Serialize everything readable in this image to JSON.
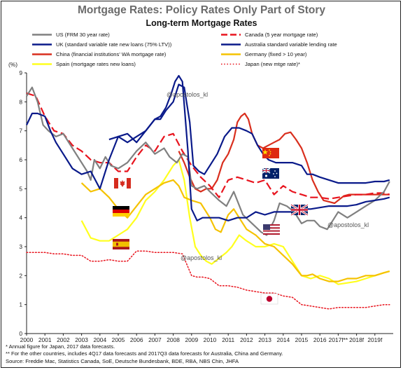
{
  "title": "Mortgage Rates: Policy Rates Only Part of Story",
  "subtitle": "Long-term Mortgage Rates",
  "watermarks": [
    "@apostolos_kl",
    "@apostolos_kl",
    "@apostolos_kl"
  ],
  "flags": [
    {
      "country": "China",
      "icon": "china-flag-icon"
    },
    {
      "country": "Australia",
      "icon": "australia-flag-icon"
    },
    {
      "country": "Canada",
      "icon": "canada-flag-icon"
    },
    {
      "country": "UK",
      "icon": "uk-flag-icon"
    },
    {
      "country": "Germany",
      "icon": "germany-flag-icon"
    },
    {
      "country": "US",
      "icon": "us-flag-icon"
    },
    {
      "country": "Spain",
      "icon": "spain-flag-icon"
    },
    {
      "country": "Japan",
      "icon": "japan-flag-icon"
    }
  ],
  "footnotes": [
    " * Annual figure for Japan,  2017 data forecasts.",
    " ** For the other countries, includes 4Q17 data forecasts and 2017Q3 data forecasts for Australia, China and Germany.",
    " Source: Freddie Mac, Statistics Canada, SoE, Deutsche Bundesbank, BDE, RBA, NBS Chin, JHFA"
  ],
  "chart_data": {
    "type": "line",
    "title": "Long-term Mortgage Rates",
    "ylabel": "(%)",
    "ylim": [
      0,
      9
    ],
    "yticks": [
      "0",
      "1",
      "2",
      "3",
      "4",
      "5",
      "6",
      "7",
      "8",
      "9"
    ],
    "xlim": [
      2000,
      2020
    ],
    "xticks": [
      "2000",
      "2001",
      "2002",
      "2003",
      "2004",
      "2005",
      "2006",
      "2007",
      "2008",
      "2009",
      "2010",
      "2011",
      "2012",
      "2013",
      "2014",
      "2015",
      "2016",
      "2017f**",
      "2018f",
      "2019f"
    ],
    "grid": false,
    "legend_position": "top",
    "series": [
      {
        "name": "US (FRM 30 year rate)",
        "color": "#808080",
        "dash": "solid",
        "x": [
          2000,
          2000.3,
          2000.6,
          2000.9,
          2001.2,
          2001.6,
          2002.0,
          2002.5,
          2002.9,
          2003.3,
          2003.5,
          2003.7,
          2004.0,
          2004.3,
          2004.6,
          2005.0,
          2005.5,
          2006.0,
          2006.5,
          2007.0,
          2007.5,
          2007.8,
          2008.2,
          2008.5,
          2008.8,
          2009.0,
          2009.3,
          2009.7,
          2010.0,
          2010.5,
          2010.9,
          2011.3,
          2011.8,
          2012.3,
          2012.8,
          2013.1,
          2013.5,
          2013.8,
          2014.2,
          2014.6,
          2015.0,
          2015.3,
          2015.7,
          2016.0,
          2016.4,
          2016.8,
          2017.0,
          2017.5,
          2018.0,
          2018.5,
          2019.0,
          2019.5,
          2019.8
        ],
        "y": [
          8.2,
          8.5,
          8.0,
          7.2,
          7.0,
          6.8,
          6.9,
          6.4,
          6.0,
          5.6,
          5.3,
          6.0,
          5.7,
          6.1,
          5.8,
          5.7,
          5.9,
          6.3,
          6.6,
          6.2,
          6.4,
          6.1,
          5.9,
          6.2,
          6.1,
          5.1,
          5.0,
          5.1,
          4.9,
          4.6,
          4.4,
          4.9,
          4.1,
          3.8,
          3.5,
          3.4,
          3.9,
          4.5,
          4.4,
          4.2,
          3.8,
          3.9,
          3.9,
          3.7,
          3.6,
          4.0,
          4.2,
          4.0,
          4.2,
          4.4,
          4.6,
          4.9,
          5.25
        ]
      },
      {
        "name": "Canada (5 year mortgage rate)",
        "color": "#e8141e",
        "dash": "long",
        "x": [
          2000,
          2000.5,
          2001.0,
          2001.5,
          2002.0,
          2002.5,
          2003.0,
          2003.5,
          2004.0,
          2004.5,
          2005.0,
          2005.5,
          2006.0,
          2006.5,
          2007.0,
          2007.5,
          2008.0,
          2008.5,
          2009.0,
          2009.5,
          2010.0,
          2010.5,
          2011.0,
          2011.5,
          2012.0,
          2012.5,
          2013.0,
          2013.5,
          2014.0,
          2014.5,
          2015.0,
          2015.5,
          2016.0,
          2016.5,
          2017.0,
          2017.5,
          2018.0,
          2018.5,
          2019.0,
          2019.5,
          2019.8
        ],
        "y": [
          8.3,
          8.2,
          7.5,
          7.0,
          6.9,
          6.5,
          6.3,
          6.0,
          5.9,
          5.9,
          5.6,
          5.6,
          6.1,
          6.5,
          6.3,
          6.8,
          6.9,
          6.3,
          5.8,
          5.4,
          5.1,
          4.7,
          5.3,
          5.4,
          5.3,
          5.2,
          5.3,
          4.8,
          5.1,
          4.9,
          4.8,
          4.7,
          4.7,
          4.65,
          4.7,
          4.75,
          4.8,
          4.8,
          4.85,
          4.85,
          4.8
        ]
      },
      {
        "name": "UK (standard variable rate new loans (75% LTV))",
        "color": "#0a1a8a",
        "dash": "solid",
        "x": [
          2000,
          2000.3,
          2000.6,
          2001.0,
          2001.3,
          2001.6,
          2002.0,
          2002.5,
          2003.0,
          2003.5,
          2004.0,
          2004.5,
          2005.0,
          2005.5,
          2006.0,
          2006.5,
          2007.0,
          2007.3,
          2007.6,
          2007.9,
          2008.1,
          2008.3,
          2008.5,
          2008.8,
          2009.0,
          2009.3,
          2009.6,
          2010.0,
          2010.5,
          2011.0,
          2011.5,
          2012.0,
          2012.5,
          2013.0,
          2013.5,
          2014.0,
          2014.5,
          2015.0,
          2015.5,
          2016.0,
          2016.5,
          2017.0,
          2017.5,
          2018.0,
          2018.5,
          2019.0,
          2019.5,
          2019.8
        ],
        "y": [
          7.2,
          7.6,
          7.6,
          7.5,
          7.0,
          6.6,
          6.2,
          5.7,
          5.5,
          5.6,
          5.0,
          6.0,
          6.8,
          6.6,
          6.8,
          7.0,
          7.4,
          7.5,
          7.8,
          8.3,
          8.7,
          8.9,
          8.7,
          6.3,
          4.3,
          3.9,
          4.0,
          4.0,
          4.0,
          3.9,
          4.0,
          4.0,
          4.2,
          4.1,
          4.2,
          4.2,
          4.2,
          4.3,
          4.3,
          4.35,
          4.4,
          4.4,
          4.4,
          4.45,
          4.55,
          4.6,
          4.65,
          4.7
        ]
      },
      {
        "name": "Australia standard variable lending rate",
        "color": "#0a1a8a",
        "dash": "solid",
        "x": [
          2004.5,
          2005.0,
          2005.5,
          2006.0,
          2006.5,
          2007.0,
          2007.3,
          2007.6,
          2008.0,
          2008.3,
          2008.6,
          2008.9,
          2009.1,
          2009.4,
          2009.7,
          2010.0,
          2010.4,
          2010.8,
          2011.2,
          2011.6,
          2012.0,
          2012.3,
          2012.6,
          2012.9,
          2013.2,
          2013.6,
          2014.0,
          2014.5,
          2015.0,
          2015.3,
          2015.6,
          2016.0,
          2016.5,
          2017.0,
          2017.5,
          2018.0,
          2018.5,
          2019.0,
          2019.5,
          2019.8
        ],
        "y": [
          6.7,
          6.8,
          6.9,
          6.6,
          7.0,
          7.4,
          7.4,
          7.7,
          8.0,
          8.6,
          8.5,
          7.3,
          5.8,
          5.6,
          5.5,
          5.8,
          6.2,
          6.8,
          7.1,
          7.1,
          7.0,
          6.9,
          6.5,
          6.2,
          6.0,
          5.9,
          5.9,
          5.9,
          5.8,
          5.5,
          5.5,
          5.4,
          5.3,
          5.2,
          5.2,
          5.2,
          5.2,
          5.25,
          5.25,
          5.3
        ]
      },
      {
        "name": "China (financial institutions' WA mortgage rate)",
        "color": "#d92f1e",
        "dash": "solid",
        "x": [
          2008.3,
          2008.6,
          2008.9,
          2009.2,
          2009.5,
          2009.8,
          2010.1,
          2010.4,
          2010.7,
          2011.0,
          2011.3,
          2011.5,
          2011.7,
          2011.9,
          2012.1,
          2012.3,
          2012.6,
          2012.9,
          2013.2,
          2013.5,
          2013.8,
          2014.1,
          2014.4,
          2014.7,
          2015.0,
          2015.3,
          2015.6,
          2015.9,
          2016.2,
          2016.5,
          2016.8,
          2017.0,
          2017.3,
          2017.6,
          2018.0,
          2018.5,
          2019.0,
          2019.5,
          2019.8
        ],
        "y": [
          6.3,
          5.9,
          5.4,
          5.0,
          4.9,
          5.0,
          5.0,
          5.3,
          5.9,
          6.2,
          6.7,
          7.3,
          7.5,
          7.6,
          7.4,
          6.9,
          6.5,
          6.4,
          6.5,
          6.6,
          6.7,
          6.9,
          6.95,
          6.7,
          6.4,
          5.9,
          5.3,
          4.9,
          4.6,
          4.55,
          4.5,
          4.6,
          4.75,
          4.8,
          4.8,
          4.8,
          4.8,
          4.8,
          4.8
        ]
      },
      {
        "name": "Germany (fixed > 10 year)",
        "color": "#f5c200",
        "dash": "solid",
        "x": [
          2003.0,
          2003.5,
          2004.0,
          2004.5,
          2005.0,
          2005.5,
          2006.0,
          2006.5,
          2007.0,
          2007.5,
          2008.0,
          2008.3,
          2008.6,
          2009.0,
          2009.5,
          2010.0,
          2010.3,
          2010.6,
          2011.0,
          2011.3,
          2011.7,
          2012.0,
          2012.5,
          2013.0,
          2013.5,
          2014.0,
          2014.5,
          2015.0,
          2015.3,
          2015.6,
          2016.0,
          2016.5,
          2017.0,
          2017.5,
          2018.0,
          2018.5,
          2019.0,
          2019.5,
          2019.8
        ],
        "y": [
          5.2,
          4.9,
          5.0,
          4.7,
          4.3,
          4.0,
          4.4,
          4.8,
          5.0,
          5.2,
          5.3,
          5.1,
          4.7,
          4.6,
          4.5,
          4.0,
          3.6,
          3.5,
          4.1,
          4.3,
          3.9,
          3.6,
          3.4,
          3.1,
          3.0,
          2.7,
          2.4,
          2.0,
          2.0,
          2.05,
          1.9,
          1.8,
          1.8,
          1.9,
          1.9,
          2.0,
          2.0,
          2.1,
          2.15
        ]
      },
      {
        "name": "Spain (mortgage rates new loans)",
        "color": "#ffff1e",
        "dash": "solid",
        "x": [
          2003.0,
          2003.5,
          2004.0,
          2004.5,
          2005.0,
          2005.5,
          2006.0,
          2006.5,
          2007.0,
          2007.5,
          2008.0,
          2008.3,
          2008.6,
          2008.9,
          2009.2,
          2009.5,
          2009.8,
          2010.1,
          2010.5,
          2010.9,
          2011.2,
          2011.6,
          2012.0,
          2012.5,
          2013.0,
          2013.5,
          2014.0,
          2014.5,
          2015.0,
          2015.5,
          2016.0,
          2016.5,
          2017.0,
          2017.5,
          2018.0,
          2018.5,
          2019.0,
          2019.5,
          2019.8
        ],
        "y": [
          3.9,
          3.3,
          3.2,
          3.2,
          3.4,
          3.6,
          4.0,
          4.6,
          4.9,
          5.3,
          5.8,
          6.0,
          5.3,
          4.0,
          3.0,
          2.7,
          2.5,
          2.4,
          2.6,
          2.8,
          3.0,
          3.4,
          3.2,
          3.0,
          3.0,
          3.1,
          3.0,
          2.5,
          2.0,
          1.9,
          2.0,
          1.9,
          1.7,
          1.75,
          1.8,
          1.9,
          2.0,
          2.1,
          2.15
        ]
      },
      {
        "name": "Japan (new mtge rate)*",
        "color": "#e8141e",
        "dash": "dotted",
        "x": [
          2000,
          2000.5,
          2001.0,
          2001.5,
          2002.0,
          2002.5,
          2003.0,
          2003.5,
          2004.0,
          2004.5,
          2005.0,
          2005.5,
          2006.0,
          2006.5,
          2007.0,
          2007.5,
          2008.0,
          2008.5,
          2009.0,
          2009.3,
          2009.6,
          2010.0,
          2010.5,
          2011.0,
          2011.5,
          2012.0,
          2012.5,
          2013.0,
          2013.5,
          2014.0,
          2014.5,
          2015.0,
          2015.5,
          2016.0,
          2016.5,
          2017.0,
          2017.5,
          2018.0,
          2018.5,
          2019.0,
          2019.5,
          2019.8
        ],
        "y": [
          2.8,
          2.8,
          2.8,
          2.75,
          2.75,
          2.7,
          2.7,
          2.5,
          2.5,
          2.55,
          2.5,
          2.5,
          2.85,
          2.85,
          2.8,
          2.8,
          2.8,
          2.75,
          2.0,
          1.95,
          1.95,
          1.9,
          1.65,
          1.65,
          1.6,
          1.5,
          1.45,
          1.4,
          1.4,
          1.3,
          1.25,
          1.0,
          0.95,
          0.9,
          0.85,
          0.9,
          0.9,
          0.9,
          0.9,
          0.95,
          1.0,
          1.0
        ]
      }
    ]
  }
}
